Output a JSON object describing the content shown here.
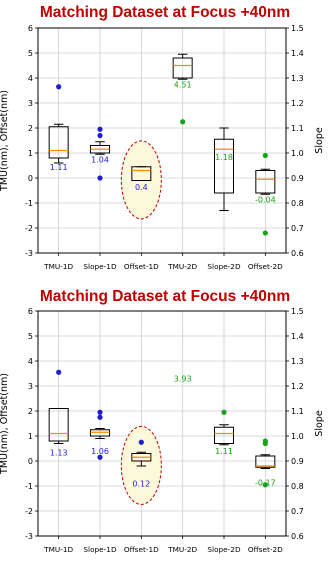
{
  "colors": {
    "title": "#c00000",
    "median": "#ff8c00",
    "box": "#000000",
    "slope_points": "#1f1fd0",
    "offset_points": "#1aa21a",
    "ellipse_stroke": "#c00000",
    "ellipse_fill": "#fcf8dc"
  },
  "chart_data": [
    {
      "type": "box",
      "title": "Matching Dataset at Focus +40nm",
      "xlabel": "",
      "ylabel": "TMU(nm), Offset(nm)",
      "y2label": "Slope",
      "categories": [
        "TMU-1D",
        "Slope-1D",
        "Offset-1D",
        "TMU-2D",
        "Slope-2D",
        "Offset-2D"
      ],
      "ylim": [
        -3,
        6
      ],
      "y2lim": [
        0.6,
        1.5
      ],
      "yticks": [
        -3,
        -2,
        -1,
        0,
        1,
        2,
        3,
        4,
        5,
        6
      ],
      "y2ticks": [
        "0.6",
        "0.7",
        "0.8",
        "0.9",
        "1.0",
        "1.1",
        "1.2",
        "1.3",
        "1.4",
        "1.5"
      ],
      "grid": true,
      "boxes": [
        {
          "category": "TMU-1D",
          "whisker_low": 0.6,
          "q1": 0.8,
          "median": 1.1,
          "q3": 2.05,
          "whisker_high": 2.15,
          "outliers": [
            3.65
          ],
          "label": "1.11",
          "point_color": "slope_points"
        },
        {
          "category": "Slope-1D",
          "whisker_low": 0.95,
          "q1": 1.0,
          "median": 1.15,
          "q3": 1.3,
          "whisker_high": 1.45,
          "outliers": [
            0.0,
            1.7,
            1.95
          ],
          "label": "1.04",
          "point_color": "slope_points"
        },
        {
          "category": "Offset-1D",
          "whisker_low": -0.1,
          "q1": -0.1,
          "median": 0.3,
          "q3": 0.45,
          "whisker_high": 0.45,
          "outliers": [],
          "label": "0.4",
          "point_color": "slope_points",
          "highlighted": true
        },
        {
          "category": "TMU-2D",
          "whisker_low": 3.95,
          "q1": 4.0,
          "median": 4.5,
          "q3": 4.8,
          "whisker_high": 4.95,
          "outliers": [
            2.25
          ],
          "label": "4.51",
          "point_color": "offset_points"
        },
        {
          "category": "Slope-2D",
          "whisker_low": -1.3,
          "q1": -0.6,
          "median": 1.15,
          "q3": 1.55,
          "whisker_high": 2.0,
          "outliers": [],
          "label": "1.18",
          "point_color": "offset_points"
        },
        {
          "category": "Offset-2D",
          "whisker_low": -0.65,
          "q1": -0.6,
          "median": -0.05,
          "q3": 0.3,
          "whisker_high": 0.35,
          "outliers": [
            0.9,
            -2.2
          ],
          "label": "-0.04",
          "point_color": "offset_points"
        }
      ],
      "annotations": [
        {
          "text": "1.11",
          "category": "TMU-1D",
          "y": 0.45,
          "color": "slope_points"
        },
        {
          "text": "1.04",
          "category": "Slope-1D",
          "y": 0.75,
          "color": "slope_points"
        },
        {
          "text": "0.4",
          "category": "Offset-1D",
          "y": -0.35,
          "color": "slope_points"
        },
        {
          "text": "4.51",
          "category": "TMU-2D",
          "y": 3.75,
          "color": "offset_points"
        },
        {
          "text": "1.18",
          "category": "Slope-2D",
          "y": 0.85,
          "color": "offset_points"
        },
        {
          "text": "-0.04",
          "category": "Offset-2D",
          "y": -0.85,
          "color": "offset_points"
        }
      ]
    },
    {
      "type": "box",
      "title": "Matching Dataset at Focus +40nm",
      "xlabel": "",
      "ylabel": "TMU(nm), Offset(nm)",
      "y2label": "Slope",
      "categories": [
        "TMU-1D",
        "Slope-1D",
        "Offset-1D",
        "TMU-2D",
        "Slope-2D",
        "Offset-2D"
      ],
      "ylim": [
        -3,
        6
      ],
      "y2lim": [
        0.6,
        1.5
      ],
      "yticks": [
        -3,
        -2,
        -1,
        0,
        1,
        2,
        3,
        4,
        5,
        6
      ],
      "y2ticks": [
        "0.6",
        "0.7",
        "0.8",
        "0.9",
        "1.0",
        "1.1",
        "1.2",
        "1.3",
        "1.4",
        "1.5"
      ],
      "grid": true,
      "boxes": [
        {
          "category": "TMU-1D",
          "whisker_low": 0.7,
          "q1": 0.8,
          "median": 1.1,
          "q3": 2.1,
          "whisker_high": 2.1,
          "outliers": [
            3.55
          ],
          "label": "1.13",
          "point_color": "slope_points"
        },
        {
          "category": "Slope-1D",
          "whisker_low": 0.9,
          "q1": 1.0,
          "median": 1.15,
          "q3": 1.25,
          "whisker_high": 1.3,
          "outliers": [
            0.15,
            1.75,
            1.95
          ],
          "label": "1.06",
          "point_color": "slope_points"
        },
        {
          "category": "Offset-1D",
          "whisker_low": -0.2,
          "q1": 0.0,
          "median": 0.15,
          "q3": 0.3,
          "whisker_high": 0.35,
          "outliers": [
            0.75
          ],
          "label": "0.12",
          "point_color": "slope_points",
          "highlighted": true
        },
        {
          "category": "TMU-2D",
          "whisker_low": null,
          "q1": null,
          "median": null,
          "q3": null,
          "whisker_high": null,
          "outliers": [],
          "label": "3.93",
          "point_color": "offset_points"
        },
        {
          "category": "Slope-2D",
          "whisker_low": 0.65,
          "q1": 0.7,
          "median": 1.1,
          "q3": 1.35,
          "whisker_high": 1.45,
          "outliers": [
            1.95
          ],
          "label": "1.11",
          "point_color": "offset_points"
        },
        {
          "category": "Offset-2D",
          "whisker_low": -0.3,
          "q1": -0.25,
          "median": -0.2,
          "q3": 0.2,
          "whisker_high": 0.25,
          "outliers": [
            0.7,
            0.8,
            -0.95
          ],
          "label": "-0.17",
          "point_color": "offset_points"
        }
      ],
      "annotations": [
        {
          "text": "1.13",
          "category": "TMU-1D",
          "y": 0.35,
          "color": "slope_points"
        },
        {
          "text": "1.06",
          "category": "Slope-1D",
          "y": 0.4,
          "color": "slope_points"
        },
        {
          "text": "0.12",
          "category": "Offset-1D",
          "y": -0.9,
          "color": "slope_points"
        },
        {
          "text": "3.93",
          "category": "TMU-2D",
          "y": 3.3,
          "color": "offset_points"
        },
        {
          "text": "1.11",
          "category": "Slope-2D",
          "y": 0.4,
          "color": "offset_points"
        },
        {
          "text": "-0.17",
          "category": "Offset-2D",
          "y": -0.85,
          "color": "offset_points"
        }
      ]
    }
  ]
}
